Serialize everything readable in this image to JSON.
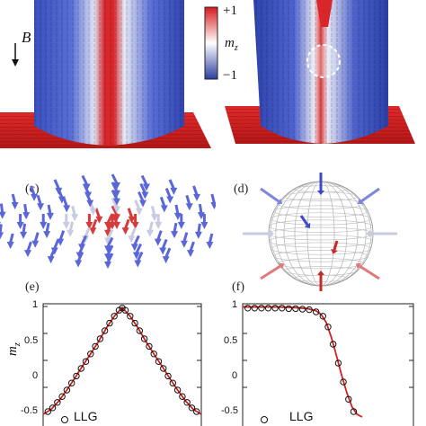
{
  "panels": {
    "c": {
      "label": "(c)"
    },
    "d": {
      "label": "(d)"
    },
    "e": {
      "label": "(e)"
    },
    "f": {
      "label": "(f)"
    }
  },
  "colorbar": {
    "top_label": "+1",
    "bottom_label": "−1",
    "quantity": "m",
    "quantity_sub": "z",
    "colors": {
      "top": "#d7191c",
      "mid": "#ffffff",
      "bottom": "#2c3e9f"
    }
  },
  "field_label": "B",
  "plots": {
    "ylabel": "m",
    "ylabel_sub": "z",
    "yticks": [
      "1",
      "0.5",
      "0",
      "-0.5"
    ],
    "legend_label": "LLG"
  },
  "chart_data": [
    {
      "type": "line",
      "panel": "e",
      "ylim": [
        -1.05,
        1.05
      ],
      "xlim": [
        0,
        1
      ],
      "yticks": [
        1,
        0.5,
        0,
        -0.5
      ],
      "series": [
        {
          "name": "LLG",
          "style": "open-circle",
          "x": [
            0.03,
            0.06,
            0.09,
            0.12,
            0.15,
            0.18,
            0.21,
            0.24,
            0.27,
            0.3,
            0.33,
            0.36,
            0.39,
            0.42,
            0.45,
            0.48,
            0.5,
            0.52,
            0.55,
            0.58,
            0.61,
            0.64,
            0.67,
            0.7,
            0.73,
            0.76,
            0.79,
            0.82,
            0.85,
            0.88,
            0.91,
            0.94,
            0.97
          ],
          "y": [
            -0.95,
            -0.88,
            -0.78,
            -0.67,
            -0.55,
            -0.42,
            -0.29,
            -0.15,
            -0.02,
            0.12,
            0.26,
            0.4,
            0.55,
            0.69,
            0.82,
            0.93,
            0.97,
            0.93,
            0.82,
            0.69,
            0.55,
            0.4,
            0.26,
            0.12,
            -0.02,
            -0.15,
            -0.29,
            -0.42,
            -0.55,
            -0.67,
            -0.78,
            -0.88,
            -0.95
          ]
        },
        {
          "style": "red-line",
          "x": [
            0.0,
            0.05,
            0.1,
            0.15,
            0.2,
            0.25,
            0.3,
            0.35,
            0.4,
            0.45,
            0.5,
            0.55,
            0.6,
            0.65,
            0.7,
            0.75,
            0.8,
            0.85,
            0.9,
            0.95,
            1.0
          ],
          "y": [
            -1.0,
            -0.91,
            -0.75,
            -0.55,
            -0.33,
            -0.1,
            0.12,
            0.35,
            0.6,
            0.82,
            0.98,
            0.82,
            0.6,
            0.35,
            0.12,
            -0.1,
            -0.33,
            -0.55,
            -0.75,
            -0.91,
            -1.0
          ]
        }
      ]
    },
    {
      "type": "line",
      "panel": "f",
      "ylim": [
        -1.05,
        1.05
      ],
      "xlim": [
        0,
        1
      ],
      "yticks": [
        1,
        0.5,
        0,
        -0.5
      ],
      "series": [
        {
          "name": "LLG",
          "style": "open-circle",
          "x": [
            0.03,
            0.07,
            0.11,
            0.15,
            0.19,
            0.23,
            0.27,
            0.31,
            0.35,
            0.39,
            0.43,
            0.47,
            0.5,
            0.53,
            0.56,
            0.59,
            0.62,
            0.65
          ],
          "y": [
            0.97,
            0.97,
            0.97,
            0.97,
            0.97,
            0.97,
            0.96,
            0.96,
            0.95,
            0.94,
            0.9,
            0.82,
            0.62,
            0.3,
            -0.05,
            -0.4,
            -0.72,
            -0.95
          ]
        },
        {
          "style": "red-line",
          "x": [
            0.0,
            0.1,
            0.2,
            0.3,
            0.38,
            0.43,
            0.46,
            0.49,
            0.52,
            0.55,
            0.58,
            0.61,
            0.64,
            0.67,
            0.7
          ],
          "y": [
            0.99,
            0.99,
            0.99,
            0.98,
            0.96,
            0.92,
            0.85,
            0.7,
            0.42,
            0.08,
            -0.28,
            -0.6,
            -0.86,
            -1.0,
            -1.05
          ]
        }
      ]
    }
  ]
}
